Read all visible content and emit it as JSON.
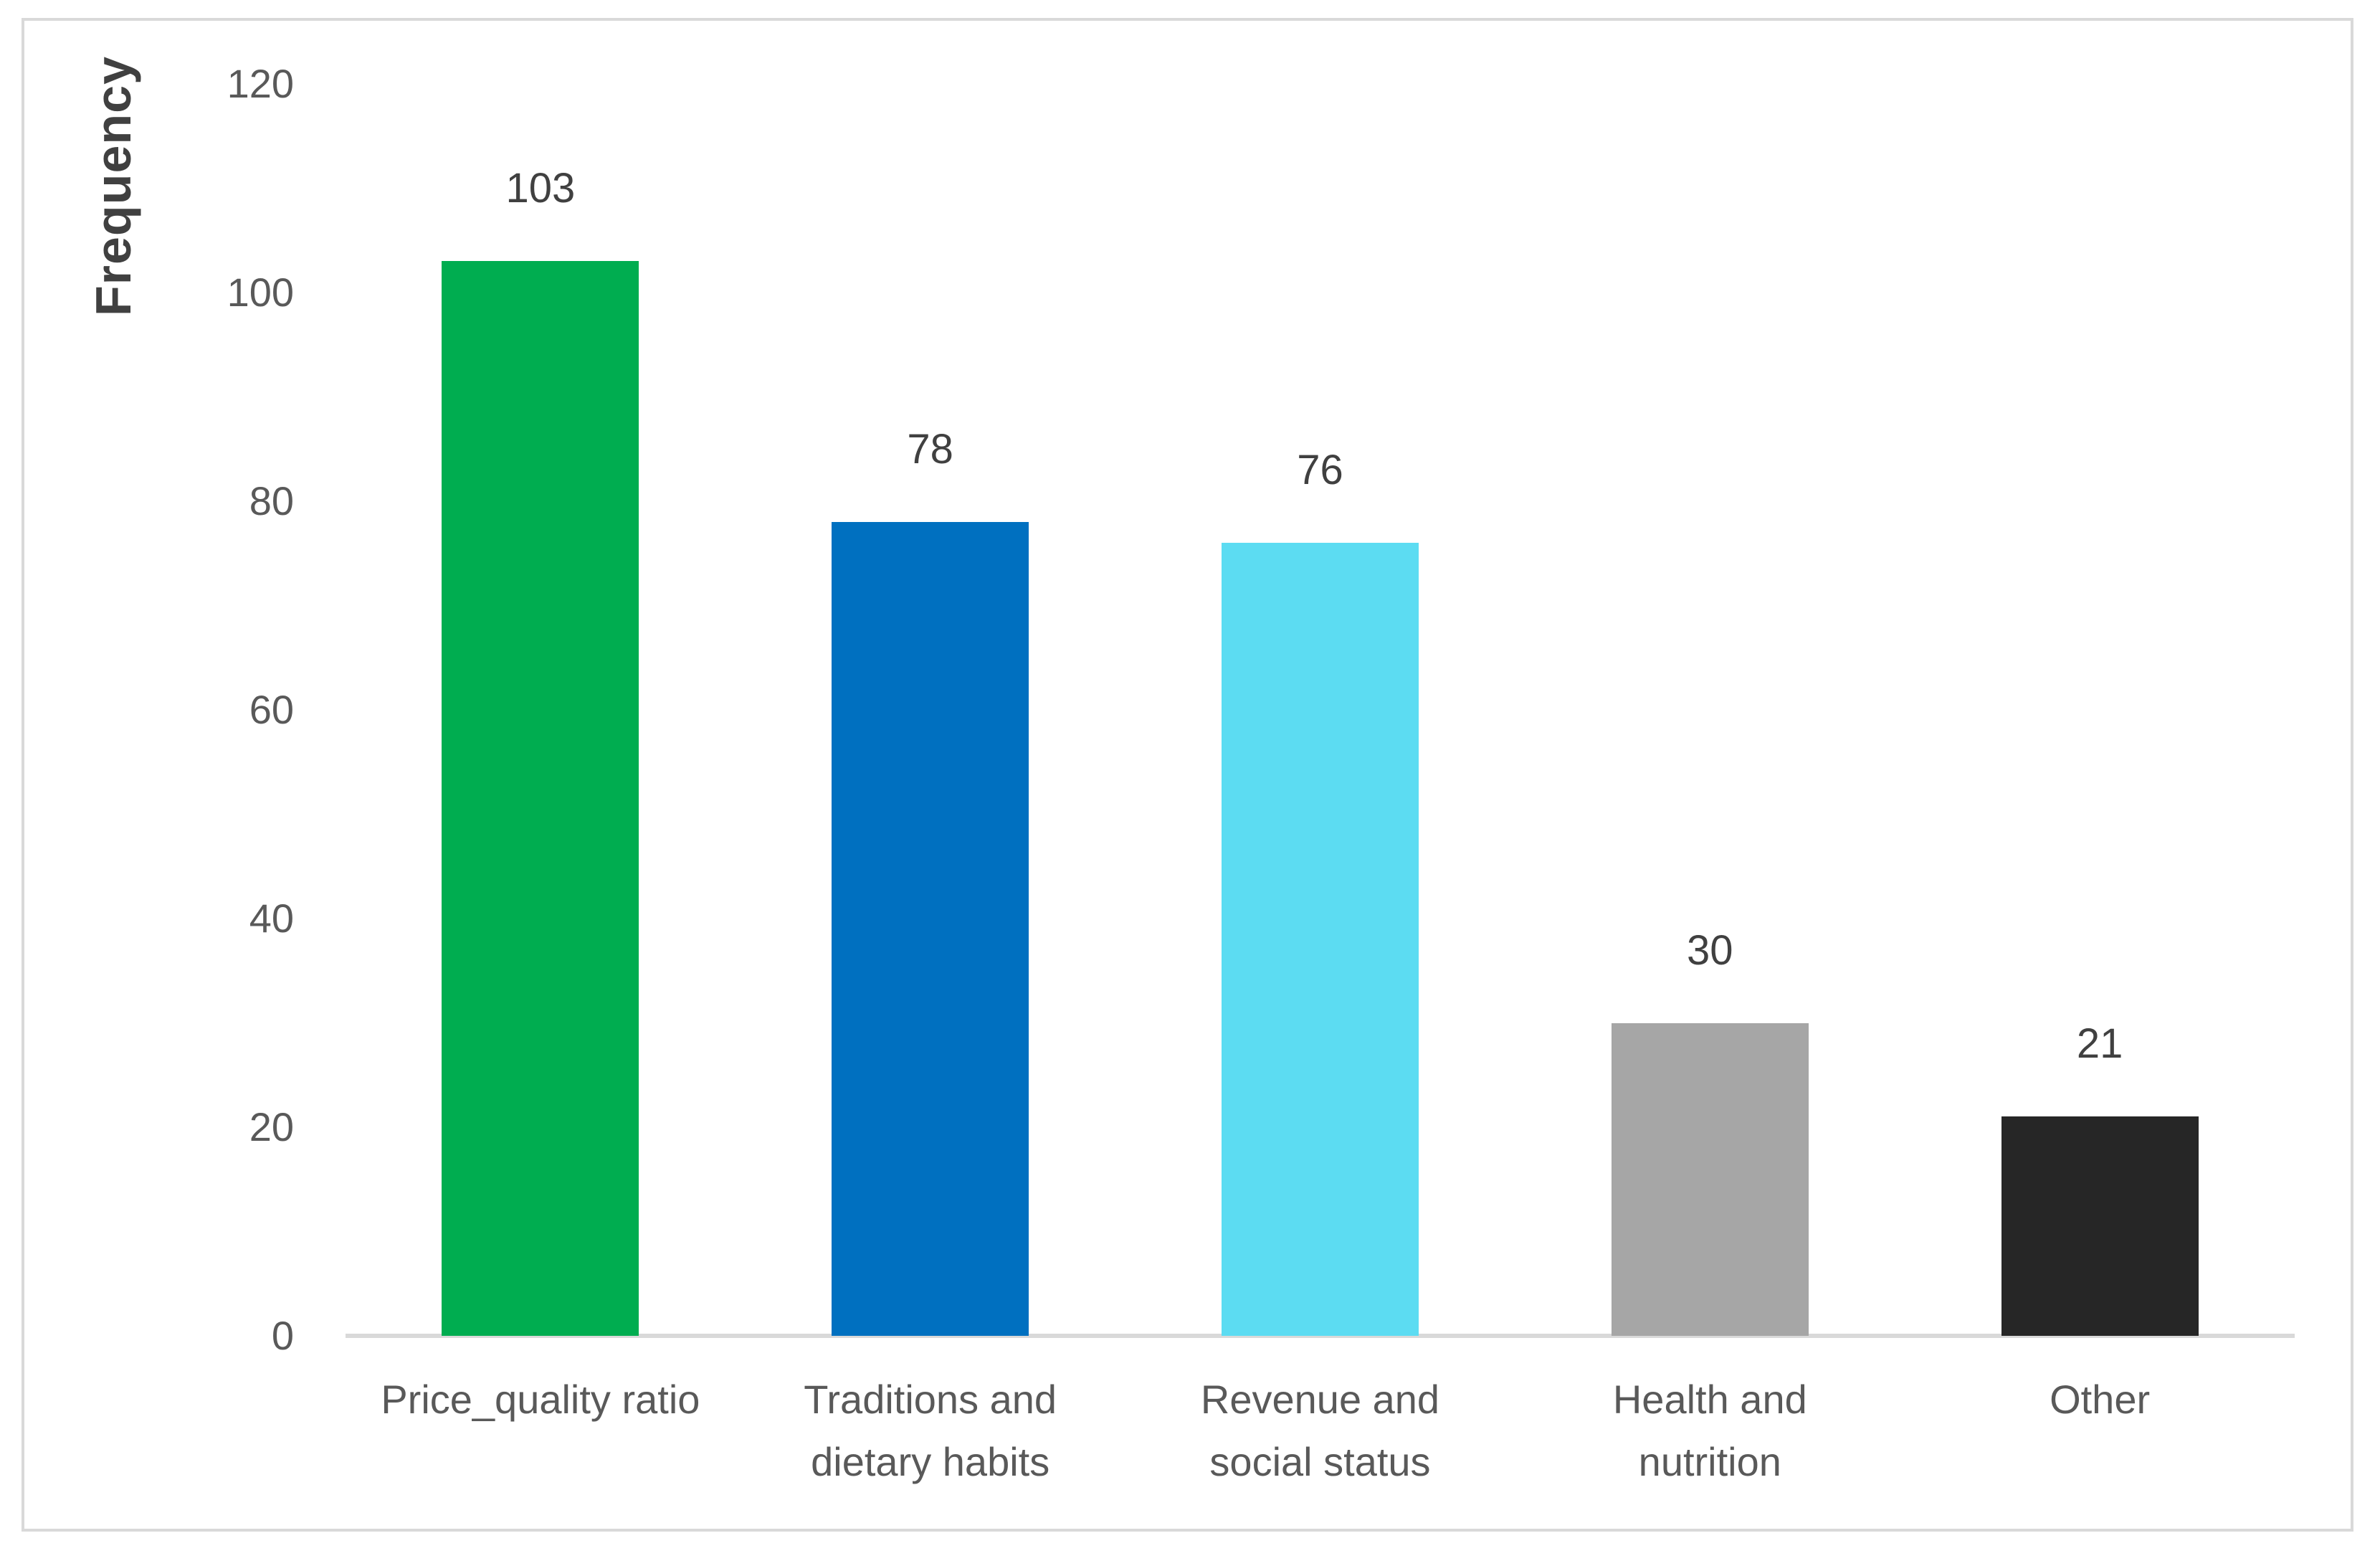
{
  "chart_data": {
    "type": "bar",
    "title": "",
    "ylabel": "Frequency",
    "xlabel": "",
    "categories": [
      "Price_quality ratio",
      "Traditions and dietary habits",
      "Revenue and social status",
      "Health and nutrition",
      "Other"
    ],
    "values": [
      103,
      78,
      76,
      30,
      21
    ],
    "data_labels": [
      "103",
      "78",
      "76",
      "30",
      "21"
    ],
    "bar_colors": [
      "#00AD50",
      "#0070C0",
      "#5CDCF2",
      "#A6A6A6",
      "#262626"
    ],
    "yticks": [
      0,
      20,
      40,
      60,
      80,
      100,
      120
    ],
    "ylim": [
      0,
      120
    ],
    "grid": false,
    "legend": false,
    "background_color": "#FFFFFF",
    "frame_border_color": "#D9D9D9",
    "axis_line_color": "#D9D9D9",
    "tick_label_color": "#595959",
    "category_label_color": "#595959",
    "value_label_color": "#404040",
    "ylabel_color": "#404040"
  }
}
